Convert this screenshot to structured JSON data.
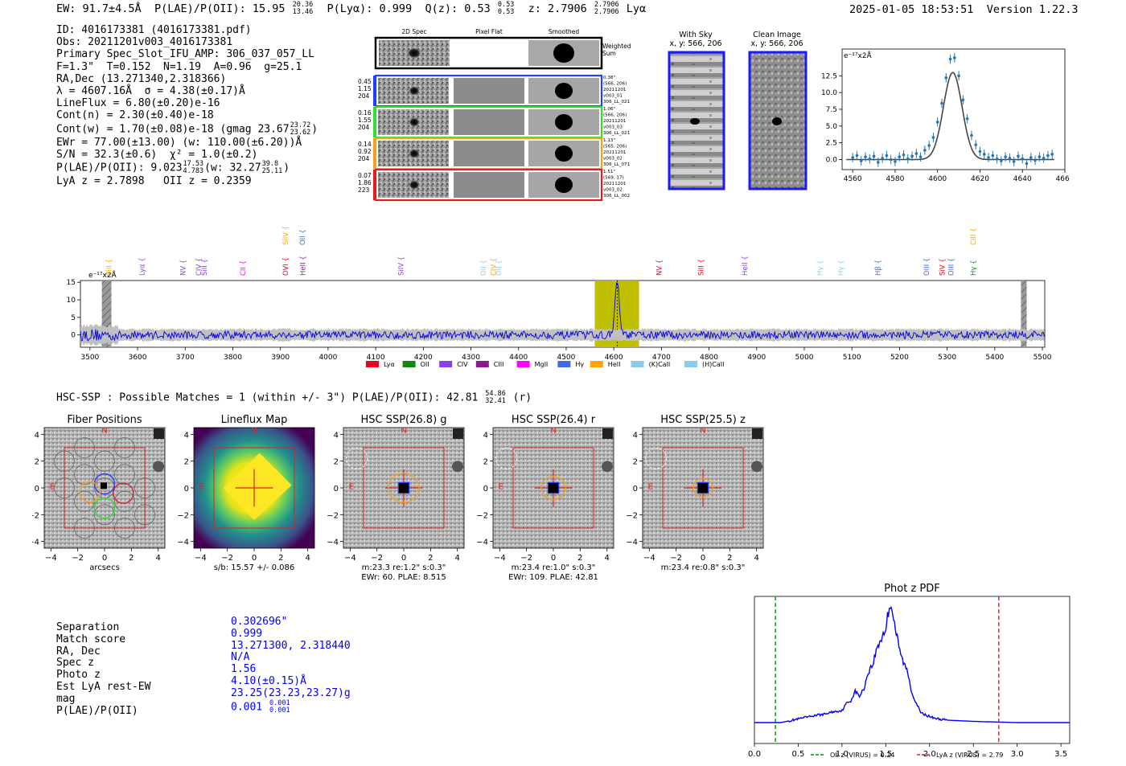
{
  "header": {
    "ew": "EW: 91.7±4.5Å",
    "plae_label": "P(LAE)/P(OII): 15.95",
    "plae_hi": "20.36",
    "plae_lo": "13.46",
    "plya": "P(Lyα): 0.999",
    "qz": "Q(z): 0.53",
    "qz_hi": "0.53",
    "qz_lo": "0.53",
    "z": "z: 2.7906",
    "z_hi": "2.7906",
    "z_lo": "2.7906",
    "z_line": "Lyα",
    "datetime": "2025-01-05 18:53:51",
    "version": "Version 1.22.3"
  },
  "info": {
    "id": "ID: 4016173381 (4016173381.pdf)",
    "obs": "Obs: 20211201v003_4016173381",
    "primary": "Primary Spec_Slot_IFU_AMP: 306_037_057_LL",
    "fparams": "F=1.3\"  T=0.152  N=1.19  A=0.96  g=25.1",
    "radec": "RA,Dec (13.271340,2.318366)",
    "lambda": "λ = 4607.16Å  σ = 4.38(±0.17)Å",
    "lineflux": "LineFlux = 6.80(±0.20)e-16",
    "contn": "Cont(n) = 2.30(±0.40)e-18",
    "contw": "Cont(w) = 1.70(±0.08)e-18 (gmag 23.67",
    "contw_hi": "23.72",
    "contw_lo": "23.62",
    "contw_end": ")",
    "ewr": "EWr = 77.00(±13.00) (w: 110.00(±6.20))Å",
    "sn": "S/N = 32.3(±0.6)  χ² = 1.0(±0.2)",
    "plae": "P(LAE)/P(OII): 9.023",
    "plae_hi": "17.53",
    "plae_lo": "4.783",
    "plae_w": "(w: 32.27",
    "plae_w_hi": "39.8",
    "plae_w_lo": "25.11",
    "plae_end": ")",
    "lyaz": "LyA z = 2.7898   OII z = 0.2359"
  },
  "cutouts": {
    "col_2d": "2D Spec",
    "col_flat": "Pixel Flat",
    "col_smooth": "Smoothed",
    "weighted_sum": "Weighted Sum",
    "rows": [
      {
        "left": [
          "0.45",
          "1.15",
          "204"
        ],
        "right": [
          "0.38\"",
          "(566, 206)",
          "20211201",
          "v003_01",
          "306_LL_021"
        ],
        "color": "#2040ff"
      },
      {
        "left": [
          "0.16",
          "1.55",
          "204"
        ],
        "right": [
          "1.06\"",
          "(566, 206)",
          "20211201",
          "v003_03",
          "306_LL_021"
        ],
        "color": "#33dd33"
      },
      {
        "left": [
          "0.14",
          "0.92",
          "204"
        ],
        "right": [
          "1.13\"",
          "(565, 206)",
          "20211201",
          "v003_02",
          "306_LL_071"
        ],
        "color": "#f5a020"
      },
      {
        "left": [
          "0.07",
          "1.86",
          "223"
        ],
        "right": [
          "1.51\"",
          "(569, 17)",
          "20211201",
          "v003_02",
          "306_LL_002"
        ],
        "color": "#e02020"
      }
    ]
  },
  "sky_images": {
    "with_sky": "With Sky",
    "with_sky_xy": "x, y: 566, 206",
    "clean": "Clean Image",
    "clean_xy": "x, y: 566, 206"
  },
  "zoom_chart": {
    "unit": "e⁻¹⁷x2Å"
  },
  "spectrum": {
    "unit": "e⁻¹⁷x2Å",
    "legend": [
      {
        "name": "Lyα",
        "color": "#e8001c"
      },
      {
        "name": "OII",
        "color": "#118811"
      },
      {
        "name": "CIV",
        "color": "#8a3ee8"
      },
      {
        "name": "CIII",
        "color": "#8b1a8b"
      },
      {
        "name": "MgII",
        "color": "#ff00ff"
      },
      {
        "name": "Hγ",
        "color": "#4169e1"
      },
      {
        "name": "HeII",
        "color": "#ffa500"
      },
      {
        "name": "(K)CaII",
        "color": "#87ceeb"
      },
      {
        "name": "(H)CaII",
        "color": "#87ceeb"
      }
    ],
    "lines": [
      {
        "name": "SiII",
        "x": 3545,
        "color": "#ffa500",
        "row": 2
      },
      {
        "name": "Lyα",
        "x": 3614,
        "color": "#8a3ee8",
        "row": 2
      },
      {
        "name": "NV",
        "x": 3700,
        "color": "#8a3ee8",
        "row": 2
      },
      {
        "name": "SiII",
        "x": 3745,
        "color": "#8a3ee8",
        "row": 2
      },
      {
        "name": "CIV",
        "x": 3733,
        "color": "#8a3ee8",
        "row": 2
      },
      {
        "name": "CII",
        "x": 3826,
        "color": "#ff00ff",
        "row": 2
      },
      {
        "name": "OVI",
        "x": 3916,
        "color": "#e8001c",
        "row": 2
      },
      {
        "name": "SiIV",
        "x": 3916,
        "color": "#ffa500",
        "row": 1
      },
      {
        "name": "OII",
        "x": 3951,
        "color": "#4169e1",
        "row": 1
      },
      {
        "name": "HeII",
        "x": 3952,
        "color": "#8b1a8b",
        "row": 2
      },
      {
        "name": "SiIV",
        "x": 4158,
        "color": "#8a3ee8",
        "row": 2
      },
      {
        "name": "OII",
        "x": 4331,
        "color": "#87ceeb",
        "row": 2
      },
      {
        "name": "CIV",
        "x": 4352,
        "color": "#ffa500",
        "row": 2
      },
      {
        "name": "OII",
        "x": 4363,
        "color": "#87ceeb",
        "row": 2
      },
      {
        "name": "NV",
        "x": 4700,
        "color": "#e8001c",
        "row": 2
      },
      {
        "name": "SiII",
        "x": 4788,
        "color": "#e8001c",
        "row": 2
      },
      {
        "name": "HeII",
        "x": 4880,
        "color": "#8a3ee8",
        "row": 2
      },
      {
        "name": "Hγ",
        "x": 5038,
        "color": "#87ceeb",
        "row": 2
      },
      {
        "name": "Hγ",
        "x": 5082,
        "color": "#87ceeb",
        "row": 2
      },
      {
        "name": "Hβ",
        "x": 5160,
        "color": "#4169e1",
        "row": 2
      },
      {
        "name": "OIII",
        "x": 5262,
        "color": "#4169e1",
        "row": 2
      },
      {
        "name": "SiV",
        "x": 5295,
        "color": "#e8001c",
        "row": 2
      },
      {
        "name": "OIII",
        "x": 5313,
        "color": "#4169e1",
        "row": 2
      },
      {
        "name": "CIII",
        "x": 5360,
        "color": "#ffa500",
        "row": 1
      },
      {
        "name": "Hγ",
        "x": 5360,
        "color": "#118811",
        "row": 2
      }
    ]
  },
  "hsc_line": {
    "text": "HSC-SSP : Possible Matches = 1 (within +/- 3\")  P(LAE)/P(OII): 42.81",
    "hi": "54.86",
    "lo": "32.41",
    "band": "(r)"
  },
  "imaging": [
    {
      "title": "Fiber Positions",
      "cap1": "arcsecs",
      "cap2": "",
      "kind": "fiber"
    },
    {
      "title": "Lineflux Map",
      "cap1": "s/b: 15.57 +/- 0.086",
      "cap2": "",
      "kind": "flux"
    },
    {
      "title": "HSC SSP(26.8) g",
      "cap1": "m:23.3  re:1.2\"  s:0.3\"",
      "cap2": "EWr: 60. PLAE: 8.515",
      "kind": "hsc",
      "ell": 19
    },
    {
      "title": "HSC SSP(26.4) r",
      "cap1": "m:23.4  re:1.0\"  s:0.3\"",
      "cap2": "EWr: 109. PLAE: 42.81",
      "kind": "hsc",
      "ell": 15
    },
    {
      "title": "HSC SSP(25.5) z",
      "cap1": "m:23.4  re:0.8\"  s:0.3\"",
      "cap2": "",
      "kind": "hsc",
      "ell": 12
    }
  ],
  "imaging_axes": {
    "north": "N",
    "east": "E"
  },
  "match": {
    "labels": [
      "Separation",
      "Match score",
      "RA, Dec",
      "Spec z",
      "Photo z",
      "Est LyA rest-EW",
      "mag",
      "P(LAE)/P(OII)"
    ],
    "separation": "0.302696\"",
    "score": "0.999",
    "radec": "13.271300, 2.318440",
    "specz": "N/A",
    "photz": "1.56",
    "ew": "4.10(±0.15)Å",
    "mag": "23.25(23.23,23.27)g",
    "plae": "0.001",
    "plae_hi": "0.001",
    "plae_lo": "0.001"
  },
  "chart_data": [
    {
      "type": "line",
      "title": "",
      "ylabel": "e⁻¹⁷x2Å",
      "x_ticks": [
        4560,
        4580,
        4600,
        4620,
        4640,
        4660
      ],
      "y_ticks": [
        0.0,
        2.5,
        5.0,
        7.5,
        10.0,
        12.5
      ],
      "xlim": [
        4555,
        4660
      ],
      "ylim": [
        -1.5,
        16.5
      ],
      "series": [
        {
          "name": "fit",
          "type": "line",
          "color": "#444444",
          "center": 4607.16,
          "sigma": 4.38,
          "amplitude": 13.0
        },
        {
          "name": "data",
          "type": "errorbar",
          "color": "#1f77b4",
          "x": [
            4560,
            4562,
            4564,
            4566,
            4568,
            4570,
            4572,
            4574,
            4576,
            4578,
            4580,
            4582,
            4584,
            4586,
            4588,
            4590,
            4592,
            4594,
            4596,
            4598,
            4600,
            4602,
            4604,
            4606,
            4608,
            4610,
            4612,
            4614,
            4616,
            4618,
            4620,
            4622,
            4624,
            4626,
            4628,
            4630,
            4632,
            4634,
            4636,
            4638,
            4640,
            4642,
            4644,
            4646,
            4648,
            4650,
            4652,
            4654
          ],
          "y": [
            0.3,
            0.6,
            -0.2,
            0.4,
            0.1,
            0.5,
            -0.4,
            0.2,
            0.6,
            0.0,
            -0.3,
            0.4,
            0.7,
            0.1,
            0.5,
            0.9,
            0.4,
            1.4,
            2.1,
            3.3,
            5.6,
            8.4,
            12.2,
            15.0,
            15.2,
            12.5,
            8.9,
            6.1,
            3.6,
            2.2,
            1.2,
            0.8,
            0.3,
            0.6,
            0.1,
            -0.2,
            0.4,
            0.2,
            -0.3,
            0.5,
            0.1,
            -0.6,
            0.3,
            -0.1,
            0.4,
            0.2,
            0.6,
            0.8
          ],
          "err": 0.7
        }
      ]
    },
    {
      "type": "line",
      "title": "",
      "ylabel": "e⁻¹⁷x2Å",
      "x_ticks": [
        3500,
        3600,
        3700,
        3800,
        3900,
        4000,
        4100,
        4200,
        4300,
        4400,
        4500,
        4600,
        4700,
        4800,
        4900,
        5000,
        5100,
        5200,
        5300,
        5400,
        5500
      ],
      "y_ticks": [
        0,
        5,
        10,
        15
      ],
      "xlim": [
        3480,
        5505
      ],
      "ylim": [
        -3.5,
        15.5
      ],
      "highlight": [
        4560,
        4653
      ],
      "peak_wavelength": 4607.16,
      "peak_flux": 15.0,
      "masked": [
        [
          3525,
          3545
        ],
        [
          5455,
          5467
        ]
      ],
      "series": [
        {
          "name": "flux",
          "color": "#0000dd"
        },
        {
          "name": "error",
          "color": "#bbbbbb"
        }
      ]
    },
    {
      "type": "line",
      "title": "Phot z PDF",
      "x_ticks": [
        0.0,
        0.5,
        1.0,
        1.5,
        2.0,
        2.5,
        3.0,
        3.5
      ],
      "xlim": [
        0.0,
        3.6
      ],
      "ylim": [
        0,
        1.0
      ],
      "vlines": [
        {
          "label": "OII z (VIRUS) = 0.24",
          "x": 0.24,
          "color": "#118811"
        },
        {
          "label": "LyA z (VIRUS) = 2.79",
          "x": 2.79,
          "color": "#dd2222"
        }
      ],
      "series": [
        {
          "name": "pdf",
          "color": "#0000ff",
          "x": [
            0.0,
            0.3,
            0.5,
            0.7,
            0.8,
            0.9,
            1.0,
            1.05,
            1.1,
            1.15,
            1.2,
            1.25,
            1.3,
            1.35,
            1.4,
            1.45,
            1.5,
            1.53,
            1.56,
            1.6,
            1.65,
            1.7,
            1.75,
            1.8,
            1.85,
            1.9,
            2.0,
            2.1,
            2.2,
            2.5,
            3.0,
            3.6
          ],
          "y": [
            0.0,
            0.0,
            0.03,
            0.06,
            0.07,
            0.09,
            0.1,
            0.16,
            0.18,
            0.26,
            0.22,
            0.28,
            0.42,
            0.48,
            0.62,
            0.7,
            0.78,
            0.92,
            1.0,
            0.82,
            0.62,
            0.5,
            0.42,
            0.24,
            0.16,
            0.08,
            0.05,
            0.03,
            0.02,
            0.01,
            0.0,
            0.0
          ]
        }
      ]
    }
  ]
}
